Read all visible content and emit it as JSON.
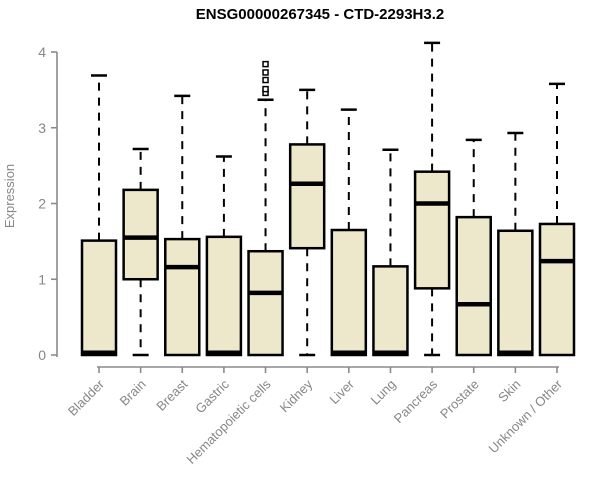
{
  "chart_data": {
    "type": "boxplot",
    "title": "ENSG00000267345 - CTD-2293H3.2",
    "ylabel": "Expression",
    "xlabel": "",
    "ylim": [
      0,
      4
    ],
    "yticks": [
      0,
      1,
      2,
      3,
      4
    ],
    "grid": false,
    "legend": false,
    "categories": [
      "Bladder",
      "Brain",
      "Breast",
      "Gastric",
      "Hematopoietic cells",
      "Kidney",
      "Liver",
      "Lung",
      "Pancreas",
      "Prostate",
      "Skin",
      "Unknown / Other"
    ],
    "series": [
      {
        "name": "Bladder",
        "whisker_low": 0,
        "q1": 0,
        "median": 0.03,
        "q3": 1.51,
        "whisker_high": 3.69,
        "outliers": []
      },
      {
        "name": "Brain",
        "whisker_low": 0,
        "q1": 1.0,
        "median": 1.55,
        "q3": 2.18,
        "whisker_high": 2.72,
        "outliers": []
      },
      {
        "name": "Breast",
        "whisker_low": 0,
        "q1": 0,
        "median": 1.16,
        "q3": 1.53,
        "whisker_high": 3.42,
        "outliers": []
      },
      {
        "name": "Gastric",
        "whisker_low": 0,
        "q1": 0,
        "median": 0.03,
        "q3": 1.56,
        "whisker_high": 2.62,
        "outliers": []
      },
      {
        "name": "Hematopoietic cells",
        "whisker_low": 0,
        "q1": 0,
        "median": 0.82,
        "q3": 1.37,
        "whisker_high": 3.37,
        "outliers": [
          3.46,
          3.51,
          3.63,
          3.73,
          3.84
        ]
      },
      {
        "name": "Kidney",
        "whisker_low": 0,
        "q1": 1.41,
        "median": 2.26,
        "q3": 2.78,
        "whisker_high": 3.5,
        "outliers": []
      },
      {
        "name": "Liver",
        "whisker_low": 0,
        "q1": 0,
        "median": 0.03,
        "q3": 1.65,
        "whisker_high": 3.24,
        "outliers": []
      },
      {
        "name": "Lung",
        "whisker_low": 0,
        "q1": 0,
        "median": 0.03,
        "q3": 1.17,
        "whisker_high": 2.71,
        "outliers": []
      },
      {
        "name": "Pancreas",
        "whisker_low": 0,
        "q1": 0.88,
        "median": 2.0,
        "q3": 2.42,
        "whisker_high": 4.12,
        "outliers": []
      },
      {
        "name": "Prostate",
        "whisker_low": 0,
        "q1": 0,
        "median": 0.67,
        "q3": 1.82,
        "whisker_high": 2.84,
        "outliers": []
      },
      {
        "name": "Skin",
        "whisker_low": 0,
        "q1": 0,
        "median": 0.03,
        "q3": 1.64,
        "whisker_high": 2.93,
        "outliers": []
      },
      {
        "name": "Unknown / Other",
        "whisker_low": 0,
        "q1": 0,
        "median": 1.24,
        "q3": 1.73,
        "whisker_high": 3.58,
        "outliers": []
      }
    ],
    "colors": {
      "box_fill": "#ede7cb",
      "box_stroke": "#000000",
      "axis": "#8a8a8a",
      "labels": "#878787",
      "title": "#000000",
      "background": "#ffffff"
    }
  }
}
